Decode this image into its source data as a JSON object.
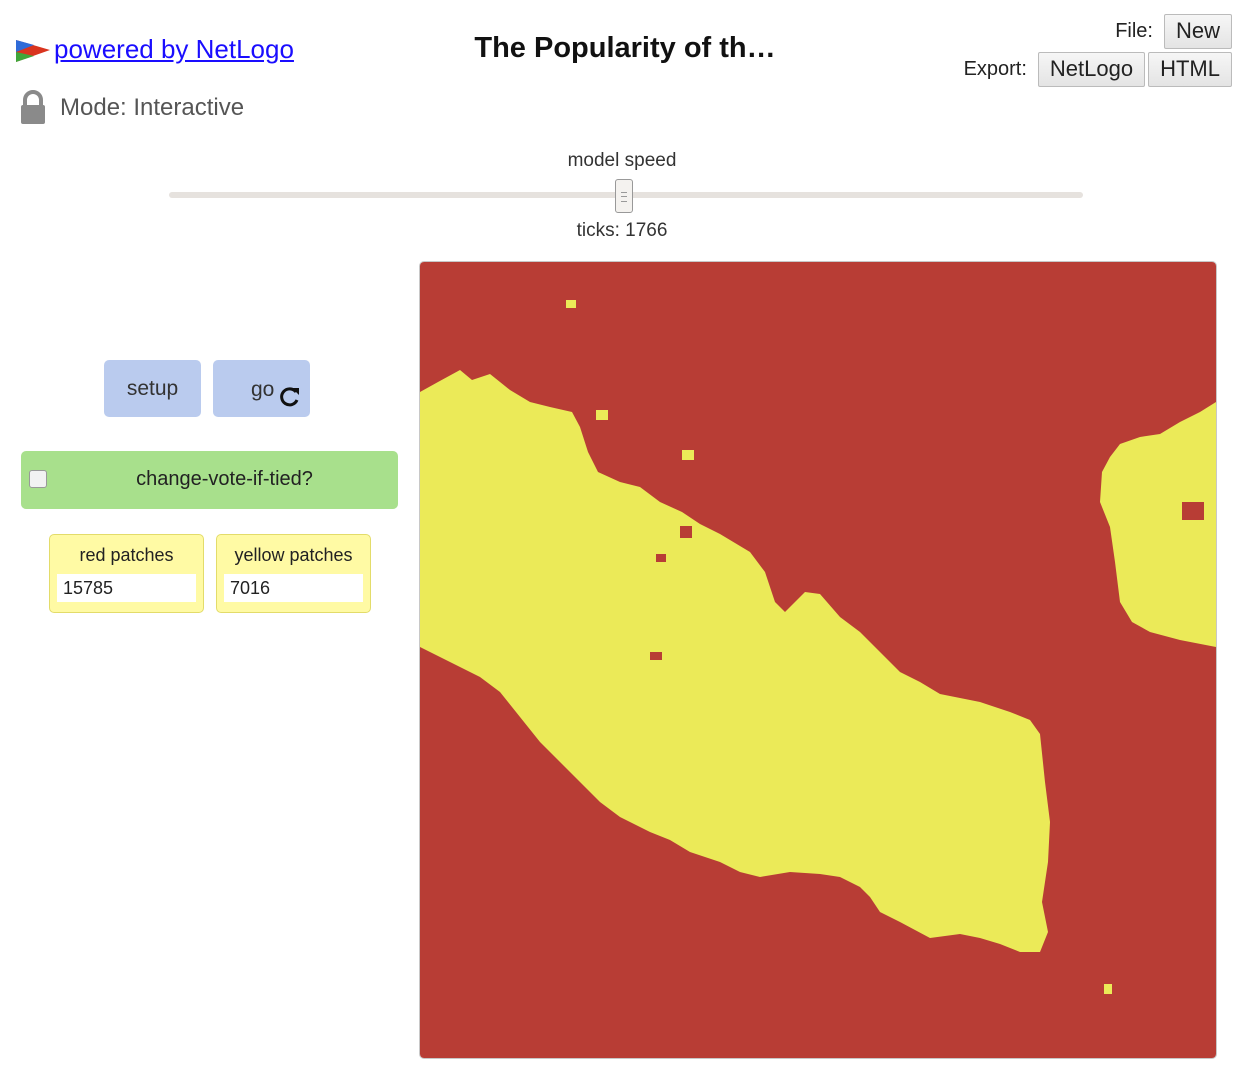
{
  "header": {
    "logo_text": "powered by NetLogo",
    "mode_text": "Mode: Interactive",
    "title": "The Popularity of th…",
    "file_label": "File:",
    "new_button": "New",
    "export_label": "Export:",
    "export_netlogo_button": "NetLogo",
    "export_html_button": "HTML"
  },
  "speed": {
    "label": "model speed",
    "ticks_text": "ticks: 1766"
  },
  "widgets": {
    "setup_label": "setup",
    "go_label": "go",
    "switch_label": "change-vote-if-tied?",
    "switch_on": false,
    "monitors": [
      {
        "label": "red patches",
        "value": "15785"
      },
      {
        "label": "yellow patches",
        "value": "7016"
      }
    ]
  },
  "world": {
    "background_color": "#b83d35",
    "patch_color_yellow": "#ebea58"
  },
  "icons": [
    "netlogo-logo-icon",
    "lock-icon",
    "reload-icon"
  ]
}
